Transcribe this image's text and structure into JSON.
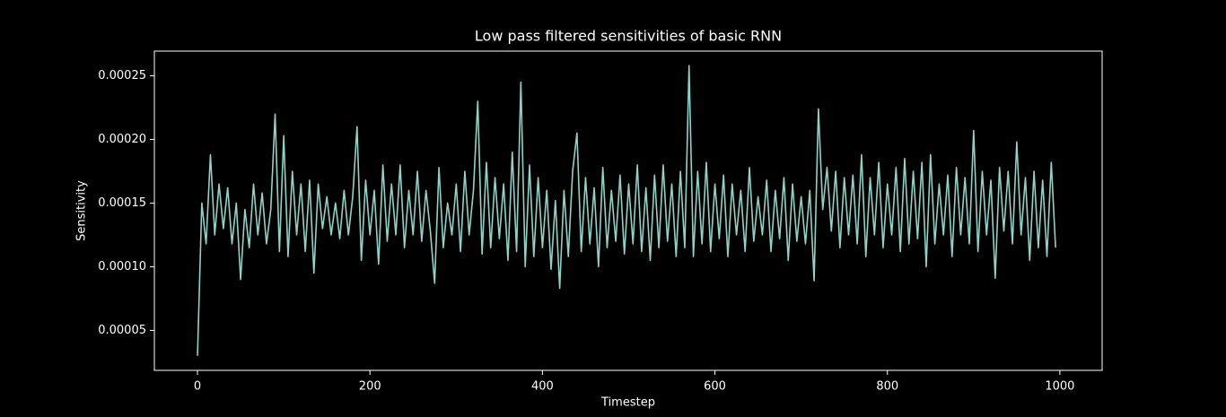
{
  "chart_data": {
    "type": "line",
    "title": "Low pass filtered sensitivities of basic RNN",
    "x_label": "Timestep",
    "y_label": "Sensitivity",
    "xlim": [
      -50,
      1049
    ],
    "ylim": [
      1.86e-05,
      0.0002694
    ],
    "xticks": [
      0,
      200,
      400,
      600,
      800,
      1000
    ],
    "yticks": [
      {
        "value": 5e-05,
        "label": "0.00005"
      },
      {
        "value": 0.0001,
        "label": "0.00010"
      },
      {
        "value": 0.00015,
        "label": "0.00015"
      },
      {
        "value": 0.0002,
        "label": "0.00020"
      },
      {
        "value": 0.00025,
        "label": "0.00025"
      }
    ],
    "x": [
      0,
      5,
      10,
      15,
      20,
      25,
      30,
      35,
      40,
      45,
      50,
      55,
      60,
      65,
      70,
      75,
      80,
      85,
      90,
      95,
      100,
      105,
      110,
      115,
      120,
      125,
      130,
      135,
      140,
      145,
      150,
      155,
      160,
      165,
      170,
      175,
      180,
      185,
      190,
      195,
      200,
      205,
      210,
      215,
      220,
      225,
      230,
      235,
      240,
      245,
      250,
      255,
      260,
      265,
      270,
      275,
      280,
      285,
      290,
      295,
      300,
      305,
      310,
      315,
      320,
      325,
      330,
      335,
      340,
      345,
      350,
      355,
      360,
      365,
      370,
      375,
      380,
      385,
      390,
      395,
      400,
      405,
      410,
      415,
      420,
      425,
      430,
      435,
      440,
      445,
      450,
      455,
      460,
      465,
      470,
      475,
      480,
      485,
      490,
      495,
      500,
      505,
      510,
      515,
      520,
      525,
      530,
      535,
      540,
      545,
      550,
      555,
      560,
      565,
      570,
      575,
      580,
      585,
      590,
      595,
      600,
      605,
      610,
      615,
      620,
      625,
      630,
      635,
      640,
      645,
      650,
      655,
      660,
      665,
      670,
      675,
      680,
      685,
      690,
      695,
      700,
      705,
      710,
      715,
      720,
      725,
      730,
      735,
      740,
      745,
      750,
      755,
      760,
      765,
      770,
      775,
      780,
      785,
      790,
      795,
      800,
      805,
      810,
      815,
      820,
      825,
      830,
      835,
      840,
      845,
      850,
      855,
      860,
      865,
      870,
      875,
      880,
      885,
      890,
      895,
      900,
      905,
      910,
      915,
      920,
      925,
      930,
      935,
      940,
      945,
      950,
      955,
      960,
      965,
      970,
      975,
      980,
      985,
      990,
      995
    ],
    "series": [
      {
        "color": "#8dd3c7",
        "values": [
          3e-05,
          0.00015,
          0.000118,
          0.000188,
          0.000125,
          0.000165,
          0.00013,
          0.000162,
          0.000118,
          0.00015,
          9e-05,
          0.000145,
          0.000115,
          0.000165,
          0.000125,
          0.000158,
          0.000118,
          0.000145,
          0.00022,
          0.000112,
          0.000203,
          0.000108,
          0.000175,
          0.000125,
          0.000165,
          0.000112,
          0.000168,
          9.5e-05,
          0.000165,
          0.00013,
          0.000155,
          0.000125,
          0.00015,
          0.000122,
          0.00016,
          0.000125,
          0.000155,
          0.00021,
          0.000105,
          0.000168,
          0.000125,
          0.00016,
          0.000102,
          0.00018,
          0.00012,
          0.000165,
          0.000125,
          0.00018,
          0.000115,
          0.00016,
          0.000125,
          0.000175,
          0.00012,
          0.00016,
          0.000128,
          8.7e-05,
          0.000178,
          0.000115,
          0.00015,
          0.000125,
          0.000165,
          0.000112,
          0.000175,
          0.000125,
          0.00016,
          0.00023,
          0.00011,
          0.000182,
          0.000115,
          0.00017,
          0.000122,
          0.000165,
          0.000105,
          0.00019,
          0.000112,
          0.000245,
          0.0001,
          0.00018,
          0.000108,
          0.00017,
          0.000115,
          0.00016,
          9.8e-05,
          0.000152,
          8.3e-05,
          0.00016,
          0.000108,
          0.000175,
          0.000205,
          0.000112,
          0.00017,
          0.000118,
          0.000162,
          0.0001,
          0.000178,
          0.000115,
          0.00016,
          0.00012,
          0.000172,
          0.00011,
          0.000165,
          0.000118,
          0.00018,
          0.000112,
          0.000162,
          0.000105,
          0.000172,
          0.000115,
          0.00018,
          0.00012,
          0.000165,
          0.000108,
          0.000175,
          0.000115,
          0.000258,
          0.000108,
          0.000175,
          0.000118,
          0.000182,
          0.000112,
          0.000165,
          0.000122,
          0.000172,
          0.000108,
          0.000165,
          0.000125,
          0.00016,
          0.000112,
          0.000178,
          0.00012,
          0.000155,
          0.000125,
          0.000168,
          0.000112,
          0.00016,
          0.000122,
          0.00017,
          0.000105,
          0.000165,
          0.00012,
          0.000155,
          0.000118,
          0.00016,
          8.9e-05,
          0.000224,
          0.000145,
          0.000178,
          0.000128,
          0.000175,
          0.000115,
          0.00017,
          0.000125,
          0.000172,
          0.000118,
          0.000188,
          0.000108,
          0.00017,
          0.000125,
          0.000182,
          0.000115,
          0.000165,
          0.000125,
          0.000178,
          0.000112,
          0.000185,
          0.000118,
          0.000175,
          0.000122,
          0.000182,
          0.0001,
          0.000188,
          0.000118,
          0.000165,
          0.000125,
          0.000172,
          0.000108,
          0.000178,
          0.000125,
          0.00017,
          0.000118,
          0.000207,
          0.000112,
          0.000175,
          0.000125,
          0.000168,
          9.1e-05,
          0.000178,
          0.000128,
          0.000175,
          0.000118,
          0.000198,
          0.000125,
          0.00017,
          0.000105,
          0.000175,
          0.000115,
          0.000168,
          0.000108,
          0.000182,
          0.000115
        ]
      }
    ]
  }
}
